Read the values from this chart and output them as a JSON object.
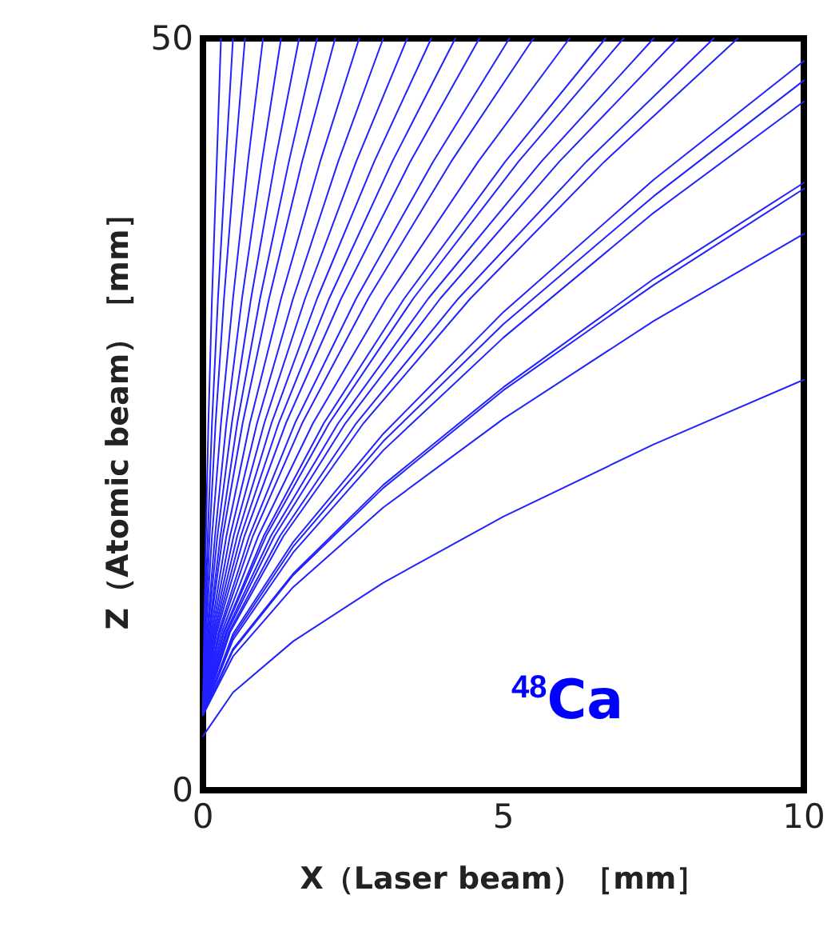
{
  "chart_data": {
    "type": "line",
    "xlabel": "X（Laser beam）［mm］",
    "ylabel": "Z（Atomic beam）［mm］",
    "annotations": [
      "$^{48}$Ca"
    ],
    "xlim": [
      0,
      10
    ],
    "xticks": [
      0,
      5,
      10
    ],
    "ylim": [
      0,
      50
    ],
    "yticks": [
      0,
      50
    ],
    "grid": false,
    "marker": "none",
    "line_style": "solid",
    "series": [
      {
        "color": "#2222ff",
        "x": [
          0,
          0.5,
          1.5,
          3,
          5,
          7.5,
          10
        ],
        "values": [
          3.6,
          6.5,
          9.9,
          13.8,
          18.2,
          23.0,
          27.3
        ]
      },
      {
        "color": "#2222ff",
        "x": [
          0,
          0.5,
          1.5,
          3,
          5,
          7.5,
          10
        ],
        "values": [
          5,
          8.9,
          13.5,
          18.8,
          24.7,
          31.2,
          37.0
        ]
      },
      {
        "color": "#2222ff",
        "x": [
          0,
          0.5,
          1.5,
          3,
          5,
          7.5,
          10
        ],
        "values": [
          5,
          9.3,
          14.3,
          20.1,
          26.6,
          33.6,
          40.0
        ]
      },
      {
        "color": "#2222ff",
        "x": [
          0,
          0.5,
          1.5,
          3,
          5,
          7.5,
          10
        ],
        "values": [
          5,
          9.4,
          14.4,
          20.3,
          26.8,
          34.0,
          40.4
        ]
      },
      {
        "color": "#2222ff",
        "x": [
          0,
          0.5,
          1.5,
          3,
          5,
          7.5,
          10
        ],
        "values": [
          5,
          10.0,
          15.8,
          22.6,
          30.1,
          38.4,
          45.8
        ]
      },
      {
        "color": "#2222ff",
        "x": [
          0,
          0.5,
          1.5,
          3,
          5,
          7.5,
          10
        ],
        "values": [
          5,
          10.2,
          16.2,
          23.2,
          31.0,
          39.5,
          47.2
        ]
      },
      {
        "color": "#2222ff",
        "x": [
          0,
          0.5,
          1.5,
          3,
          5,
          7.5,
          10
        ],
        "values": [
          5,
          10.4,
          16.5,
          23.7,
          31.8,
          40.6,
          48.5
        ]
      },
      {
        "color": "#2222ff",
        "x": [
          0,
          0.45,
          1.34,
          2.67,
          4.45,
          6.68,
          8.9
        ],
        "values": [
          5,
          10.5,
          16.9,
          24.4,
          32.7,
          41.8,
          50
        ]
      },
      {
        "color": "#2222ff",
        "x": [
          0,
          0.43,
          1.28,
          2.55,
          4.25,
          6.38,
          8.5
        ],
        "values": [
          5,
          10.5,
          16.9,
          24.4,
          32.7,
          41.8,
          50
        ]
      },
      {
        "color": "#2222ff",
        "x": [
          0,
          0.4,
          1.19,
          2.37,
          3.95,
          5.93,
          7.9
        ],
        "values": [
          5,
          10.5,
          16.9,
          24.4,
          32.7,
          41.8,
          50
        ]
      },
      {
        "color": "#2222ff",
        "x": [
          0,
          0.38,
          1.13,
          2.25,
          3.75,
          5.63,
          7.5
        ],
        "values": [
          5,
          10.5,
          16.9,
          24.4,
          32.7,
          41.8,
          50
        ]
      },
      {
        "color": "#2222ff",
        "x": [
          0,
          0.35,
          1.05,
          2.1,
          3.5,
          5.25,
          7
        ],
        "values": [
          5,
          10.5,
          16.9,
          24.4,
          32.7,
          41.8,
          50
        ]
      },
      {
        "color": "#2222ff",
        "x": [
          0,
          0.34,
          1.01,
          2.01,
          3.35,
          5.03,
          6.7
        ],
        "values": [
          5,
          10.5,
          16.9,
          24.4,
          32.7,
          41.8,
          50
        ]
      },
      {
        "color": "#2222ff",
        "x": [
          0,
          0.31,
          0.92,
          1.83,
          3.05,
          4.58,
          6.1
        ],
        "values": [
          5,
          10.5,
          16.9,
          24.4,
          32.7,
          41.8,
          50
        ]
      },
      {
        "color": "#2222ff",
        "x": [
          0,
          0.28,
          0.83,
          1.65,
          2.75,
          4.13,
          5.5
        ],
        "values": [
          5,
          10.5,
          16.9,
          24.4,
          32.7,
          41.8,
          50
        ]
      },
      {
        "color": "#2222ff",
        "x": [
          0,
          0.26,
          0.77,
          1.53,
          2.55,
          3.83,
          5.1
        ],
        "values": [
          5,
          10.5,
          16.9,
          24.4,
          32.7,
          41.8,
          50
        ]
      },
      {
        "color": "#2222ff",
        "x": [
          0,
          0.23,
          0.69,
          1.38,
          2.3,
          3.45,
          4.6
        ],
        "values": [
          5,
          10.5,
          16.9,
          24.4,
          32.7,
          41.8,
          50
        ]
      },
      {
        "color": "#2222ff",
        "x": [
          0,
          0.21,
          0.63,
          1.26,
          2.1,
          3.15,
          4.2
        ],
        "values": [
          5,
          10.5,
          16.9,
          24.4,
          32.7,
          41.8,
          50
        ]
      },
      {
        "color": "#2222ff",
        "x": [
          0,
          0.19,
          0.57,
          1.14,
          1.9,
          2.85,
          3.8
        ],
        "values": [
          5,
          10.5,
          16.9,
          24.4,
          32.7,
          41.8,
          50
        ]
      },
      {
        "color": "#2222ff",
        "x": [
          0,
          0.17,
          0.51,
          1.02,
          1.7,
          2.55,
          3.4
        ],
        "values": [
          5,
          10.5,
          16.9,
          24.4,
          32.7,
          41.8,
          50
        ]
      },
      {
        "color": "#2222ff",
        "x": [
          0,
          0.15,
          0.45,
          0.9,
          1.5,
          2.25,
          3
        ],
        "values": [
          5,
          10.5,
          16.9,
          24.4,
          32.7,
          41.8,
          50
        ]
      },
      {
        "color": "#2222ff",
        "x": [
          0,
          0.13,
          0.39,
          0.78,
          1.3,
          1.95,
          2.6
        ],
        "values": [
          5,
          10.5,
          16.9,
          24.4,
          32.7,
          41.8,
          50
        ]
      },
      {
        "color": "#2222ff",
        "x": [
          0,
          0.11,
          0.33,
          0.66,
          1.1,
          1.65,
          2.2
        ],
        "values": [
          5,
          10.5,
          16.9,
          24.4,
          32.7,
          41.8,
          50
        ]
      },
      {
        "color": "#2222ff",
        "x": [
          0,
          0.1,
          0.29,
          0.57,
          0.95,
          1.43,
          1.9
        ],
        "values": [
          5,
          10.5,
          16.9,
          24.4,
          32.7,
          41.8,
          50
        ]
      },
      {
        "color": "#2222ff",
        "x": [
          0,
          0.08,
          0.24,
          0.48,
          0.8,
          1.2,
          1.6
        ],
        "values": [
          5,
          10.5,
          16.9,
          24.4,
          32.7,
          41.8,
          50
        ]
      },
      {
        "color": "#2222ff",
        "x": [
          0,
          0.07,
          0.2,
          0.39,
          0.65,
          0.98,
          1.3
        ],
        "values": [
          5,
          10.5,
          16.9,
          24.4,
          32.7,
          41.8,
          50
        ]
      },
      {
        "color": "#2222ff",
        "x": [
          0,
          0.05,
          0.15,
          0.3,
          0.5,
          0.75,
          1
        ],
        "values": [
          5,
          10.5,
          16.9,
          24.4,
          32.7,
          41.8,
          50
        ]
      },
      {
        "color": "#2222ff",
        "x": [
          0,
          0.04,
          0.11,
          0.21,
          0.35,
          0.53,
          0.7
        ],
        "values": [
          5,
          10.5,
          16.9,
          24.4,
          32.7,
          41.8,
          50
        ]
      },
      {
        "color": "#2222ff",
        "x": [
          0,
          0.03,
          0.08,
          0.15,
          0.25,
          0.38,
          0.5
        ],
        "values": [
          5,
          10.5,
          16.9,
          24.4,
          32.7,
          41.8,
          50
        ]
      },
      {
        "color": "#2222ff",
        "x": [
          0,
          0.02,
          0.05,
          0.09,
          0.15,
          0.23,
          0.3
        ],
        "values": [
          5,
          10.5,
          16.9,
          24.4,
          32.7,
          41.8,
          50
        ]
      }
    ]
  }
}
